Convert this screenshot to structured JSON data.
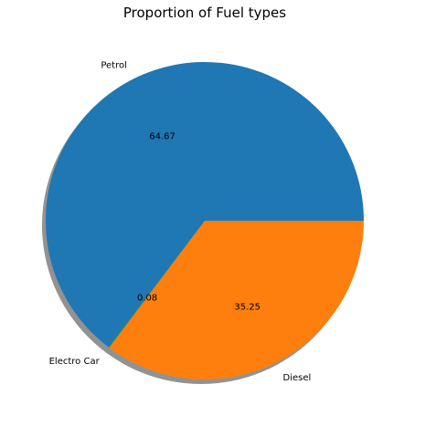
{
  "chart_data": {
    "type": "pie",
    "title": "Proportion of Fuel types",
    "slices": [
      {
        "label": "Petrol",
        "value": 64.67,
        "pct_label": "64.67",
        "color": "#1f77b4"
      },
      {
        "label": "Electro Car",
        "value": 0.08,
        "pct_label": "0.08",
        "color": "#2ca02c"
      },
      {
        "label": "Diesel",
        "value": 35.25,
        "pct_label": "35.25",
        "color": "#ff7f0e"
      }
    ],
    "start_angle_deg": 0,
    "direction": "counterclockwise",
    "shadow": true,
    "legend": "none"
  }
}
